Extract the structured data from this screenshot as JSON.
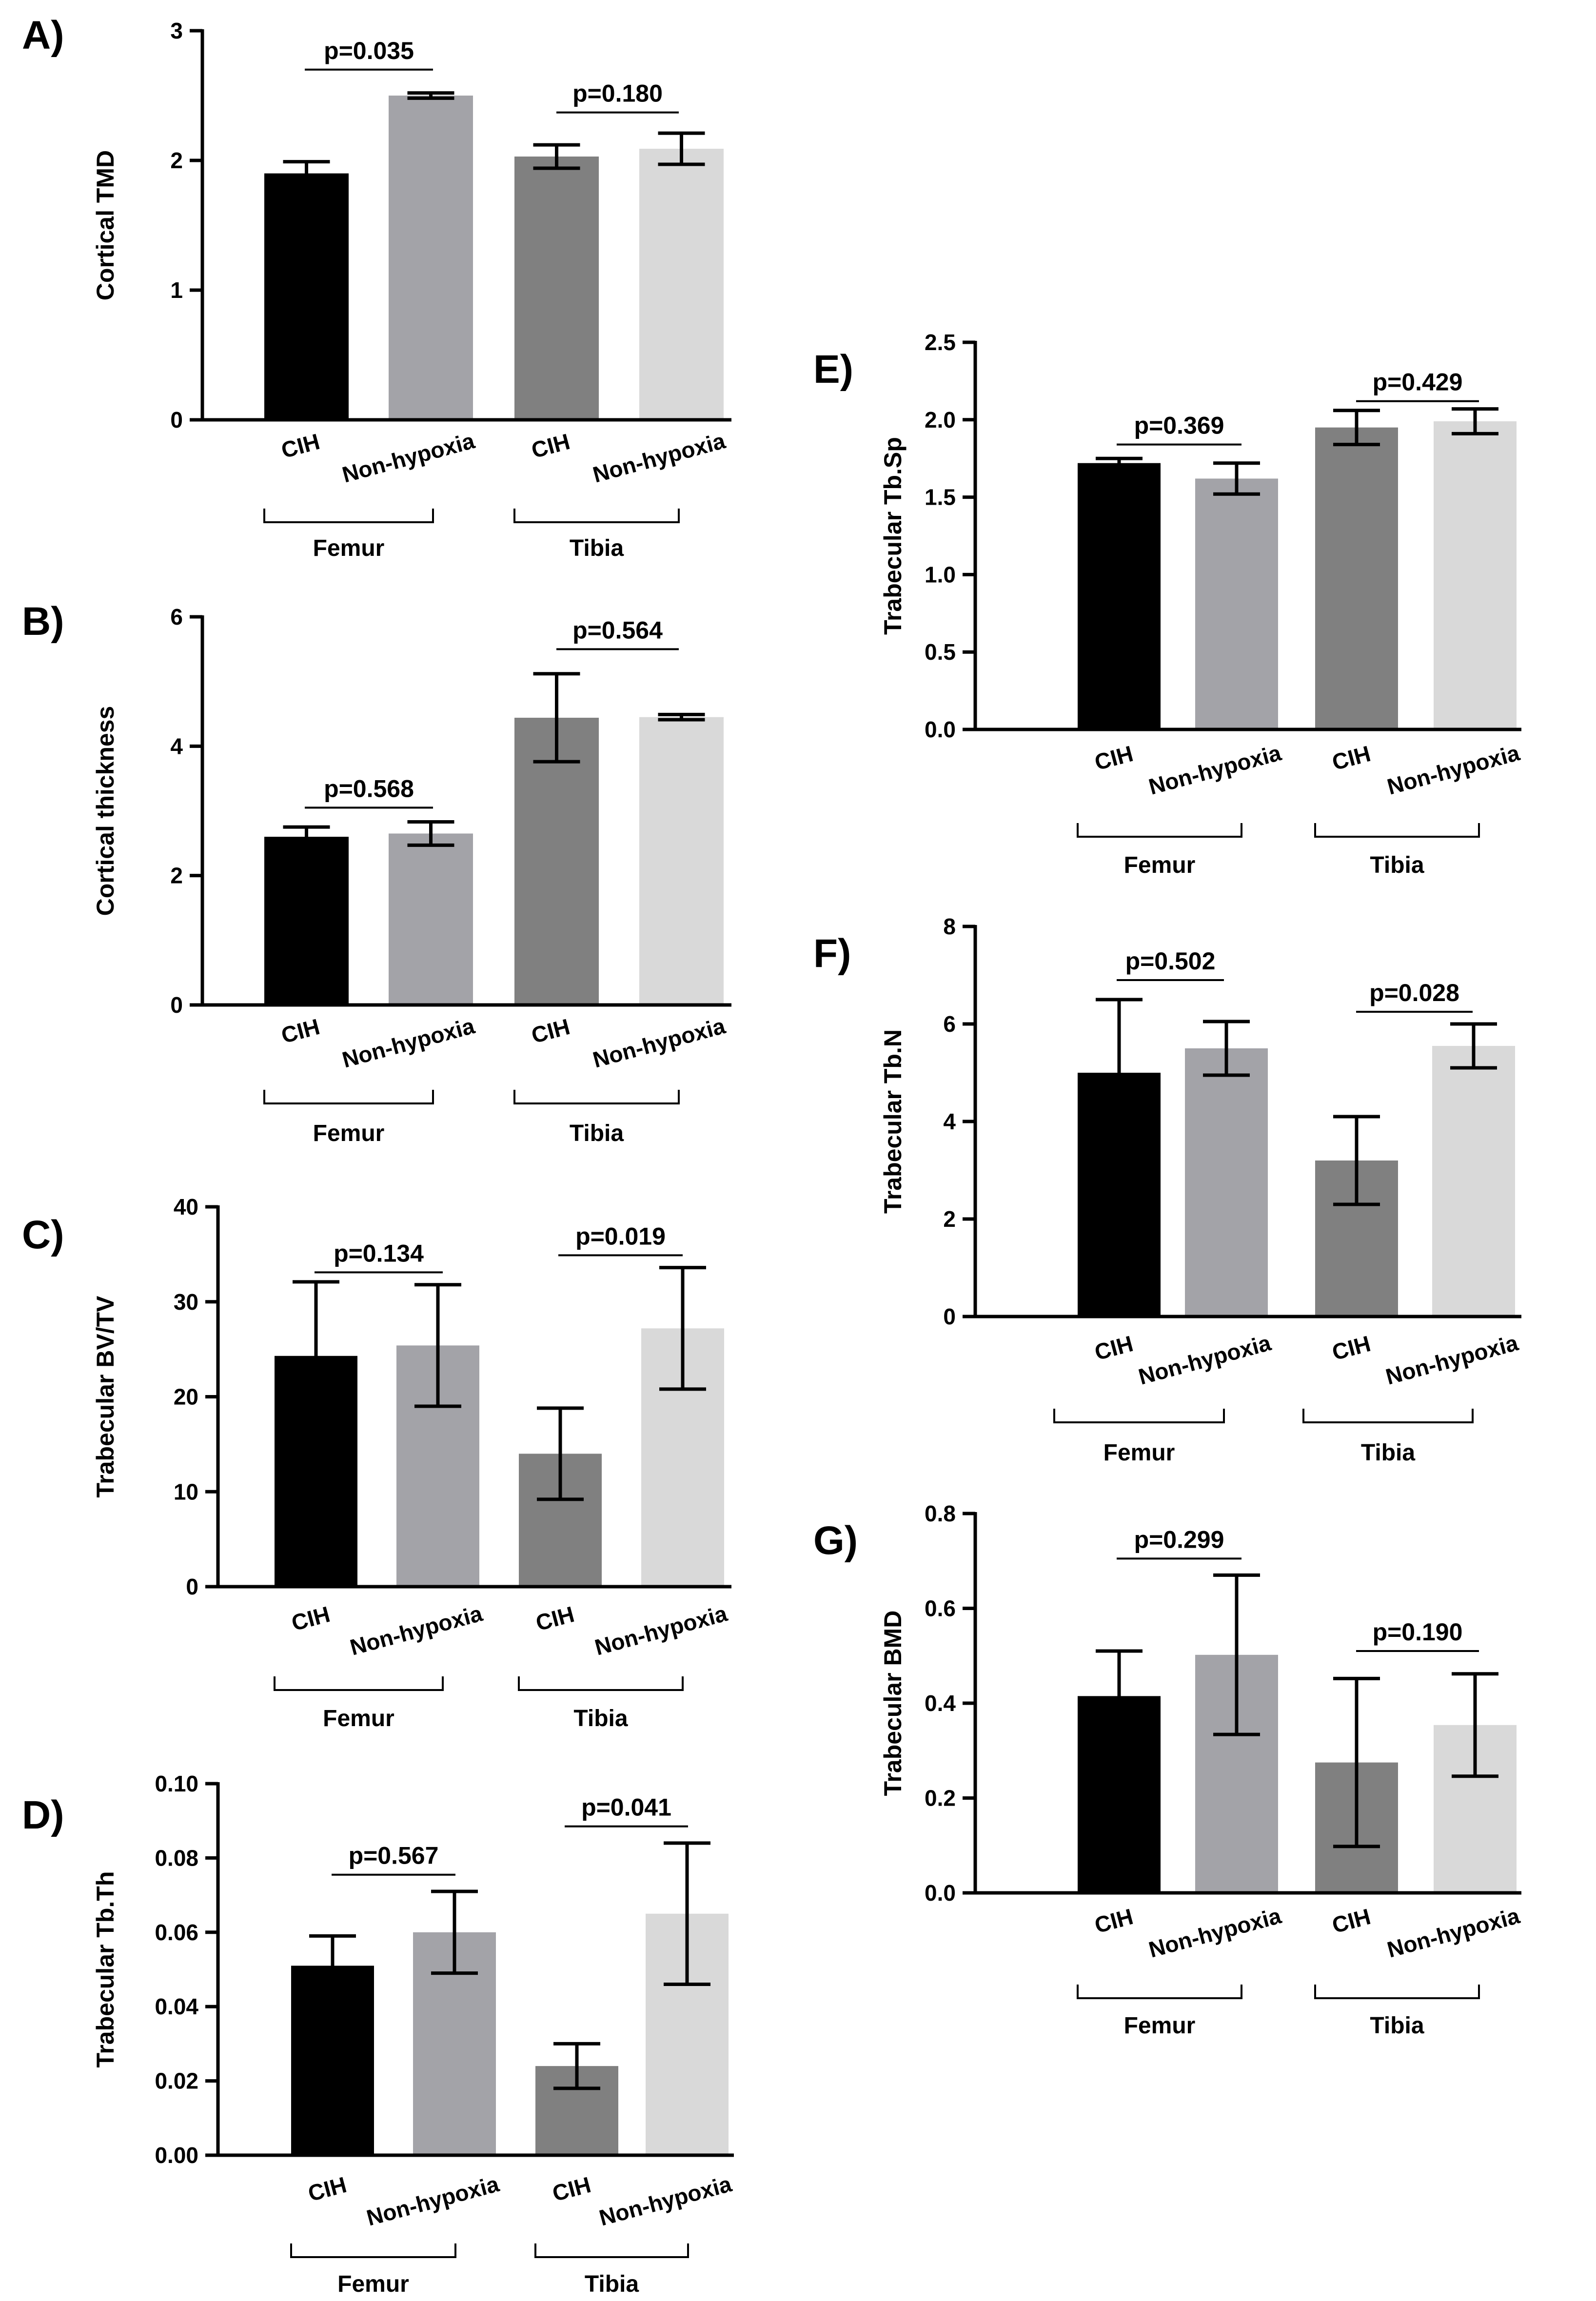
{
  "colors": {
    "CIH_Femur": "#000000",
    "NonHypoxia_Femur": "#a3a3a8",
    "CIH_Tibia": "#808080",
    "NonHypoxia_Tibia": "#d9d9d9"
  },
  "chart_data": [
    {
      "panel": "A)",
      "type": "bar",
      "ylabel": "Cortical TMD",
      "ylim": [
        0,
        3
      ],
      "ticks": [
        "0",
        "1",
        "2",
        "3"
      ],
      "tick_values": [
        0,
        1,
        2,
        3
      ],
      "categories": [
        "CIH",
        "Non-hypoxia",
        "CIH",
        "Non-hypoxia"
      ],
      "groups": [
        "Femur",
        "Tibia"
      ],
      "values": [
        1.9,
        2.5,
        2.03,
        2.09
      ],
      "errors": [
        0.09,
        0.02,
        0.09,
        0.12
      ],
      "pvalues": [
        {
          "text": "p=0.035",
          "y": 2.7
        },
        {
          "text": "p=0.180",
          "y": 2.37
        }
      ]
    },
    {
      "panel": "B)",
      "type": "bar",
      "ylabel": "Cortical thickness",
      "ylim": [
        0,
        6
      ],
      "ticks": [
        "0",
        "2",
        "4",
        "6"
      ],
      "tick_values": [
        0,
        2,
        4,
        6
      ],
      "categories": [
        "CIH",
        "Non-hypoxia",
        "CIH",
        "Non-hypoxia"
      ],
      "groups": [
        "Femur",
        "Tibia"
      ],
      "values": [
        2.6,
        2.65,
        4.44,
        4.45
      ],
      "errors": [
        0.15,
        0.18,
        0.68,
        0.04
      ],
      "pvalues": [
        {
          "text": "p=0.568",
          "y": 3.05
        },
        {
          "text": "p=0.564",
          "y": 5.5
        }
      ]
    },
    {
      "panel": "C)",
      "type": "bar",
      "ylabel": "Trabecular BV/TV",
      "ylim": [
        0,
        40
      ],
      "ticks": [
        "0",
        "10",
        "20",
        "30",
        "40"
      ],
      "tick_values": [
        0,
        10,
        20,
        30,
        40
      ],
      "categories": [
        "CIH",
        "Non-hypoxia",
        "CIH",
        "Non-hypoxia"
      ],
      "groups": [
        "Femur",
        "Tibia"
      ],
      "values": [
        24.3,
        25.4,
        14.0,
        27.2
      ],
      "errors": [
        7.8,
        6.4,
        4.8,
        6.4
      ],
      "pvalues": [
        {
          "text": "p=0.134",
          "y": 33.1
        },
        {
          "text": "p=0.019",
          "y": 34.9
        }
      ]
    },
    {
      "panel": "D)",
      "type": "bar",
      "ylabel": "Trabecular Tb.Th",
      "ylim": [
        0,
        0.1
      ],
      "ticks": [
        "0.00",
        "0.02",
        "0.04",
        "0.06",
        "0.08",
        "0.10"
      ],
      "tick_values": [
        0,
        0.02,
        0.04,
        0.06,
        0.08,
        0.1
      ],
      "categories": [
        "CIH",
        "Non-hypoxia",
        "CIH",
        "Non-hypoxia"
      ],
      "groups": [
        "Femur",
        "Tibia"
      ],
      "values": [
        0.051,
        0.06,
        0.024,
        0.065
      ],
      "errors": [
        0.008,
        0.011,
        0.006,
        0.019
      ],
      "pvalues": [
        {
          "text": "p=0.567",
          "y": 0.0755
        },
        {
          "text": "p=0.041",
          "y": 0.0885
        }
      ]
    },
    {
      "panel": "E)",
      "type": "bar",
      "ylabel": "Trabecular Tb.Sp",
      "ylim": [
        0,
        2.5
      ],
      "ticks": [
        "0.0",
        "0.5",
        "1.0",
        "1.5",
        "2.0",
        "2.5"
      ],
      "tick_values": [
        0,
        0.5,
        1.0,
        1.5,
        2.0,
        2.5
      ],
      "categories": [
        "CIH",
        "Non-hypoxia",
        "CIH",
        "Non-hypoxia"
      ],
      "groups": [
        "Femur",
        "Tibia"
      ],
      "values": [
        1.72,
        1.62,
        1.95,
        1.99
      ],
      "errors": [
        0.03,
        0.1,
        0.11,
        0.08
      ],
      "pvalues": [
        {
          "text": "p=0.369",
          "y": 1.84
        },
        {
          "text": "p=0.429",
          "y": 2.12
        }
      ]
    },
    {
      "panel": "F)",
      "type": "bar",
      "ylabel": "Trabecular Tb.N",
      "ylim": [
        0,
        8
      ],
      "ticks": [
        "0",
        "2",
        "4",
        "6",
        "8"
      ],
      "tick_values": [
        0,
        2,
        4,
        6,
        8
      ],
      "categories": [
        "CIH",
        "Non-hypoxia",
        "CIH",
        "Non-hypoxia"
      ],
      "groups": [
        "Femur",
        "Tibia"
      ],
      "values": [
        5.0,
        5.5,
        3.2,
        5.55
      ],
      "errors": [
        1.5,
        0.55,
        0.9,
        0.45
      ],
      "pvalues": [
        {
          "text": "p=0.502",
          "y": 6.9
        },
        {
          "text": "p=0.028",
          "y": 6.25
        }
      ]
    },
    {
      "panel": "G)",
      "type": "bar",
      "ylabel": "Trabecular BMD",
      "ylim": [
        0,
        0.8
      ],
      "ticks": [
        "0.0",
        "0.2",
        "0.4",
        "0.6",
        "0.8"
      ],
      "tick_values": [
        0,
        0.2,
        0.4,
        0.6,
        0.8
      ],
      "categories": [
        "CIH",
        "Non-hypoxia",
        "CIH",
        "Non-hypoxia"
      ],
      "groups": [
        "Femur",
        "Tibia"
      ],
      "values": [
        0.415,
        0.502,
        0.275,
        0.354
      ],
      "errors": [
        0.095,
        0.168,
        0.177,
        0.108
      ],
      "pvalues": [
        {
          "text": "p=0.299",
          "y": 0.705
        },
        {
          "text": "p=0.190",
          "y": 0.51
        }
      ]
    }
  ]
}
